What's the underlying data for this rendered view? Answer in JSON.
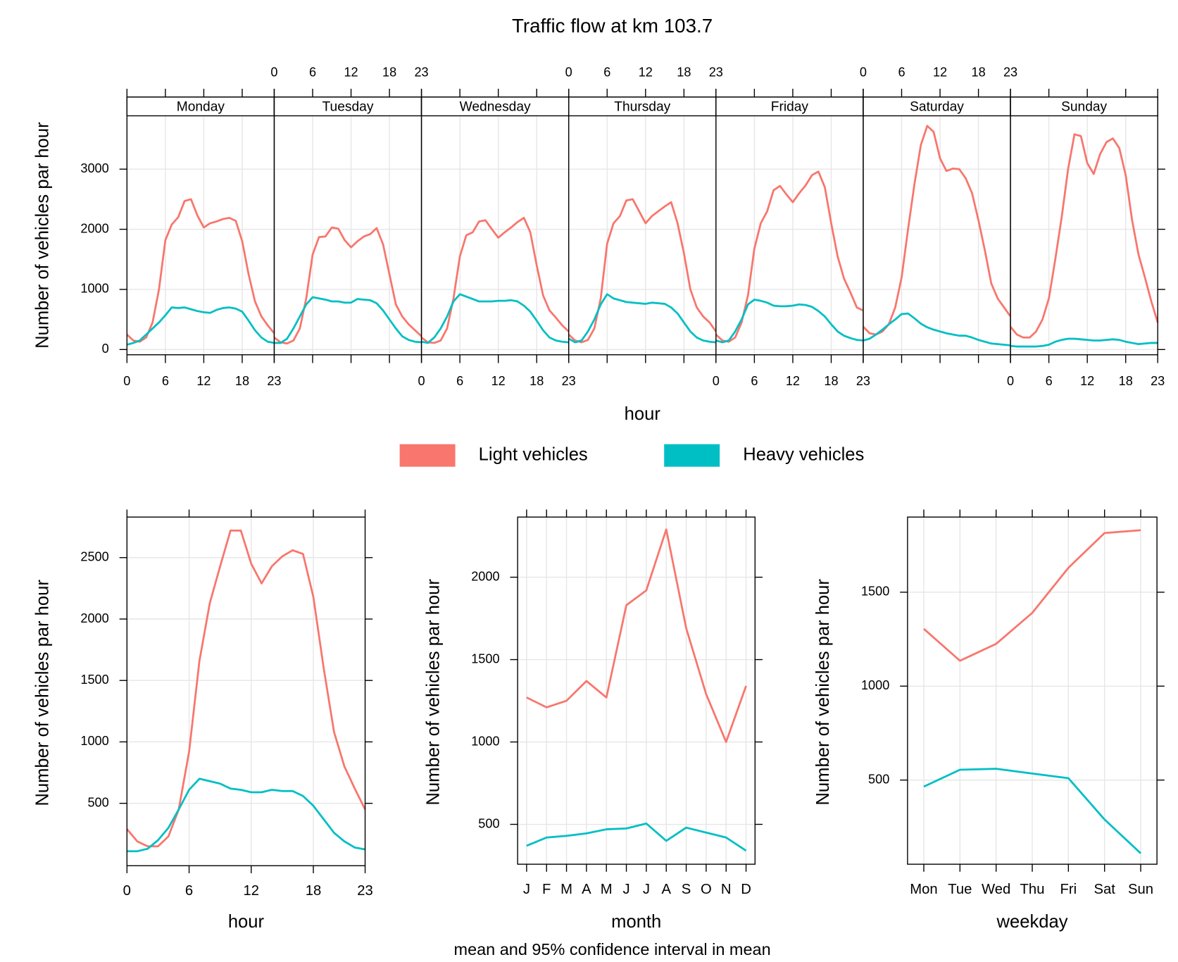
{
  "chart_data": [
    {
      "type": "line",
      "title": "Traffic flow at km 103.7",
      "xlabel": "hour",
      "ylabel": "Number of vehicles par hour",
      "panels": [
        "Monday",
        "Tuesday",
        "Wednesday",
        "Thursday",
        "Friday",
        "Saturday",
        "Sunday"
      ],
      "x": [
        0,
        1,
        2,
        3,
        4,
        5,
        6,
        7,
        8,
        9,
        10,
        11,
        12,
        13,
        14,
        15,
        16,
        17,
        18,
        19,
        20,
        21,
        22,
        23
      ],
      "xlim": [
        0,
        23
      ],
      "xticks": [
        0,
        6,
        12,
        18,
        23
      ],
      "ylim": [
        -87,
        3887
      ],
      "yticks": [
        0,
        1000,
        2000,
        3000
      ],
      "grid": true,
      "series": [
        {
          "name": "Light vehicles",
          "color": "#f8766d",
          "values": [
            [
              250,
              150,
              130,
              200,
              450,
              1000,
              1820,
              2080,
              2200,
              2470,
              2500,
              2230,
              2030,
              2100,
              2130,
              2170,
              2190,
              2140,
              1800,
              1250,
              800,
              550,
              400,
              270
            ],
            [
              200,
              120,
              100,
              150,
              350,
              850,
              1580,
              1870,
              1880,
              2030,
              2010,
              1820,
              1700,
              1800,
              1880,
              1920,
              2020,
              1750,
              1250,
              750,
              550,
              420,
              320,
              220
            ],
            [
              200,
              120,
              110,
              150,
              350,
              850,
              1550,
              1900,
              1950,
              2130,
              2150,
              2000,
              1860,
              1950,
              2030,
              2120,
              2190,
              1950,
              1400,
              900,
              650,
              530,
              400,
              300
            ],
            [
              250,
              150,
              120,
              160,
              350,
              850,
              1760,
              2100,
              2220,
              2480,
              2500,
              2300,
              2100,
              2220,
              2300,
              2380,
              2450,
              2100,
              1600,
              1000,
              700,
              550,
              450,
              300
            ],
            [
              250,
              150,
              130,
              200,
              450,
              900,
              1680,
              2100,
              2300,
              2650,
              2720,
              2580,
              2450,
              2600,
              2730,
              2900,
              2960,
              2700,
              2100,
              1550,
              1180,
              950,
              700,
              650
            ],
            [
              380,
              270,
              250,
              300,
              420,
              700,
              1200,
              2000,
              2750,
              3400,
              3720,
              3620,
              3180,
              2970,
              3010,
              3000,
              2850,
              2600,
              2150,
              1650,
              1100,
              850,
              700,
              550
            ],
            [
              380,
              250,
              200,
              200,
              300,
              500,
              850,
              1500,
              2200,
              3000,
              3580,
              3550,
              3100,
              2920,
              3250,
              3450,
              3510,
              3350,
              2900,
              2150,
              1580,
              1200,
              800,
              450
            ]
          ]
        },
        {
          "name": "Heavy vehicles",
          "color": "#00bfc4",
          "values": [
            [
              80,
              110,
              150,
              250,
              350,
              450,
              570,
              700,
              690,
              700,
              670,
              640,
              620,
              610,
              660,
              690,
              700,
              680,
              630,
              480,
              320,
              200,
              130,
              110
            ],
            [
              110,
              110,
              180,
              350,
              550,
              750,
              870,
              850,
              830,
              800,
              800,
              780,
              780,
              840,
              830,
              820,
              770,
              650,
              500,
              350,
              220,
              160,
              130,
              120
            ],
            [
              130,
              110,
              200,
              350,
              550,
              800,
              920,
              880,
              840,
              800,
              800,
              800,
              810,
              810,
              820,
              800,
              730,
              630,
              480,
              320,
              200,
              150,
              130,
              120
            ],
            [
              180,
              120,
              150,
              300,
              500,
              750,
              920,
              850,
              820,
              790,
              780,
              770,
              760,
              780,
              770,
              760,
              700,
              600,
              450,
              300,
              200,
              150,
              130,
              120
            ],
            [
              150,
              120,
              150,
              300,
              500,
              750,
              830,
              810,
              780,
              730,
              720,
              720,
              730,
              750,
              740,
              710,
              640,
              550,
              420,
              300,
              230,
              190,
              160,
              150
            ],
            [
              150,
              180,
              250,
              330,
              420,
              500,
              590,
              600,
              520,
              430,
              370,
              330,
              300,
              270,
              250,
              230,
              230,
              200,
              160,
              130,
              100,
              90,
              80,
              70
            ],
            [
              60,
              50,
              50,
              50,
              50,
              60,
              80,
              130,
              160,
              180,
              180,
              170,
              160,
              150,
              150,
              160,
              170,
              160,
              130,
              110,
              90,
              100,
              110,
              110
            ]
          ]
        }
      ]
    },
    {
      "type": "line",
      "xlabel": "hour",
      "ylabel": "Number of vehicles par hour",
      "x": [
        0,
        1,
        2,
        3,
        4,
        5,
        6,
        7,
        8,
        9,
        10,
        11,
        12,
        13,
        14,
        15,
        16,
        17,
        18,
        19,
        20,
        21,
        22,
        23
      ],
      "xlim": [
        0,
        23
      ],
      "xticks": [
        0,
        6,
        12,
        18,
        23
      ],
      "ylim": [
        -8,
        2830
      ],
      "yticks": [
        500,
        1000,
        1500,
        2000,
        2500
      ],
      "grid": true,
      "series": [
        {
          "color": "#f8766d",
          "values": [
            290,
            190,
            150,
            150,
            230,
            450,
            920,
            1660,
            2130,
            2430,
            2720,
            2720,
            2450,
            2290,
            2430,
            2510,
            2560,
            2530,
            2180,
            1600,
            1080,
            800,
            620,
            450
          ]
        },
        {
          "color": "#00bfc4",
          "values": [
            110,
            110,
            130,
            200,
            300,
            450,
            610,
            700,
            680,
            660,
            620,
            610,
            590,
            590,
            610,
            600,
            600,
            560,
            480,
            370,
            260,
            190,
            140,
            125
          ]
        }
      ]
    },
    {
      "type": "line",
      "xlabel": "month",
      "ylabel": "Number of vehicles par hour",
      "categories": [
        "J",
        "F",
        "M",
        "A",
        "M",
        "J",
        "J",
        "A",
        "S",
        "O",
        "N",
        "D"
      ],
      "ylim": [
        258,
        2365
      ],
      "yticks": [
        500,
        1000,
        1500,
        2000
      ],
      "grid": true,
      "series": [
        {
          "color": "#f8766d",
          "values": [
            1270,
            1210,
            1250,
            1370,
            1270,
            1830,
            1920,
            2290,
            1690,
            1290,
            1000,
            1340
          ]
        },
        {
          "color": "#00bfc4",
          "values": [
            370,
            420,
            430,
            445,
            470,
            475,
            505,
            400,
            480,
            450,
            420,
            340
          ]
        }
      ]
    },
    {
      "type": "line",
      "xlabel": "weekday",
      "ylabel": "Number of vehicles par hour",
      "categories": [
        "Mon",
        "Tue",
        "Wed",
        "Thu",
        "Fri",
        "Sat",
        "Sun"
      ],
      "ylim": [
        52,
        1900
      ],
      "yticks": [
        500,
        1000,
        1500
      ],
      "grid": true,
      "series": [
        {
          "color": "#f8766d",
          "values": [
            1305,
            1135,
            1225,
            1390,
            1630,
            1815,
            1830
          ]
        },
        {
          "color": "#00bfc4",
          "values": [
            465,
            555,
            560,
            535,
            510,
            290,
            110
          ]
        }
      ]
    }
  ],
  "caption": "mean and 95% confidence interval in mean"
}
